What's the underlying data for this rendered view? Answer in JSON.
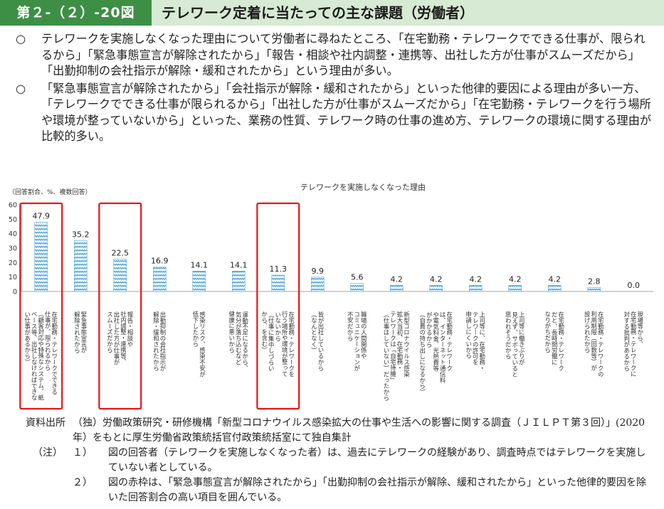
{
  "header": {
    "figure_no": "第２-（２）-20図",
    "title": "テレワーク定着に当たっての主な課題（労働者）"
  },
  "bullets": [
    {
      "mark": "○",
      "text": "テレワークを実施しなくなった理由について労働者に尋ねたところ、「在宅勤務・テレワークでできる仕事が、限られるから」「緊急事態宣言が解除されたから」「報告・相談や社内調整・連携等、出社した方が仕事がスムーズだから」「出勤抑制の会社指示が解除・緩和されたから」という理由が多い。"
    },
    {
      "mark": "○",
      "text": "「緊急事態宣言が解除されたから」「会社指示が解除・緩和されたから」といった他律的要因による理由が多い一方、「テレワークでできる仕事が限られるから」「出社した方が仕事がスムーズだから」「在宅勤務・テレワークを行う場所や環境が整っていないから」といった、業務の性質、テレワーク時の仕事の進め方、テレワークの環境に関する理由が比較的多い。"
    }
  ],
  "chart_data": {
    "type": "bar",
    "title": "テレワークを実施しなくなった理由",
    "unit_note": "（回答割合、%、複数回答）",
    "ylim": [
      0,
      60
    ],
    "yticks": [
      0,
      10,
      20,
      30,
      40,
      50,
      60
    ],
    "categories": [
      "在宅勤務・テレワークでできる仕事が、限られるから（顧客対応や特殊なシステム、紙ベース等、出社しなければできない仕事があるから）",
      "緊急事態宣言が解除されたから",
      "報告・相談や社内調整・連携等、出社した方が仕事がスムーズだから",
      "出勤抑制の会社指示が解除・緩和されたから",
      "感染リスク、感染不安が低下したから",
      "運動不足になるから、気分が落ち込むなど健康に悪いから",
      "在宅勤務・テレワークを行う場所や環境が整っていないから（仕事に集中しづらいから、を含む）",
      "皆が出社しているから（なんとなく）",
      "職場の人間関係やコミュニケーションが不安だから",
      "新型コロナウイルス感染拡大当初、在宅勤務・テレワークは「自宅待機」（仕事はしていない）だったから",
      "在宅勤務・テレワークは、インターネット通信料や電気料金、光熱費等がかかるから（自費の持ち出しになるから）",
      "上司等に、在宅勤務・テレワークの許可を申請しにくいから",
      "上司等に働きぶりが見えず、サボっていると思われそうだから",
      "在宅勤務・テレワークだと、長時間労働になりがちだから",
      "在宅勤務・テレワークの利用制限（回数等）が設けられたから",
      "現場等から、在宅勤務・テレワークに対する批判があるから"
    ],
    "labels": [
      "在宅勤務・テレワークでできる\n仕事が、限られるから\n（顧客対応や特殊なシステム、紙\nベース等、出社しなければできな\nい仕事があるから）",
      "緊急事態宣言が\n解除されたから",
      "報告・相談や\n社内調整・連携等、\n出社した方が仕事が\nスムーズだから",
      "出勤抑制の会社指示が\n解除・緩和されたから",
      "感染リスク、感染不安が\n低下したから",
      "運動不足になるから、\n気分が落ち込むなど\n健康に悪いから",
      "在宅勤務・テレワークを\n行う場所や環境が整って\nいないから\n（仕事に集中しづらい\nから、を含む）",
      "皆が出社しているから\n（なんとなく）",
      "職場の人間関係や\nコミュニケーションが\n不安だから",
      "新型コロナウイルス感染\n拡大当初、在宅勤務・\nテレワークは「自宅待機」\n（仕事はしていない）だったから",
      "在宅勤務・テレワーク\nは、インターネット通信料\nや電気料金、光熱費等\nがかかるから\n（自費の持ち出しになるから）",
      "上司等に、在宅勤務・\nテレワークの許可を\n申請しにくいから",
      "上司等に働きぶりが\n見えず、サボっていると\n思われそうだから",
      "在宅勤務・テレワーク\nだと、長時間労働に\nなりがちだから",
      "在宅勤務・テレワークの\n利用制限（回数等）が\n設けられたから",
      "現場等から、\n在宅勤務・テレワークに\n対する批判があるから"
    ],
    "values": [
      47.9,
      35.2,
      22.5,
      16.9,
      14.1,
      14.1,
      11.3,
      9.9,
      5.6,
      4.2,
      4.2,
      4.2,
      4.2,
      4.2,
      2.8,
      0.0
    ],
    "value_labels": [
      "47.9",
      "35.2",
      "22.5",
      "16.9",
      "14.1",
      "14.1",
      "11.3",
      "9.9",
      "5.6",
      "4.2",
      "4.2",
      "4.2",
      "4.2",
      "4.2",
      "2.8",
      "0.0"
    ],
    "highlighted": [
      0,
      2,
      6
    ],
    "colors": {
      "bar_fill": "#e6f3fb",
      "bar_pattern": "#2b8fd0",
      "highlight_box": "#e8141b",
      "axis": "#888888"
    }
  },
  "source": {
    "head": "資料出所",
    "text": "（独）労働政策研究・研修機構「新型コロナウイルス感染拡大の仕事や生活への影響に関する調査（ＪＩＬＰＴ第３回）」(2020年）をもとに厚生労働省政策統括官付政策統括室にて独自集計",
    "notes_head": "（注）",
    "notes": [
      {
        "num": "１）",
        "text": "図の回答者（テレワークを実施しなくなった者）は、過去にテレワークの経験があり、調査時点ではテレワークを実施していない者としている。"
      },
      {
        "num": "２）",
        "text": "図の赤枠は、「緊急事態宣言が解除されたから」「出勤抑制の会社指示が解除、緩和されたから」といった他律的要因を除いた回答割合の高い項目を囲んでいる。"
      }
    ]
  }
}
